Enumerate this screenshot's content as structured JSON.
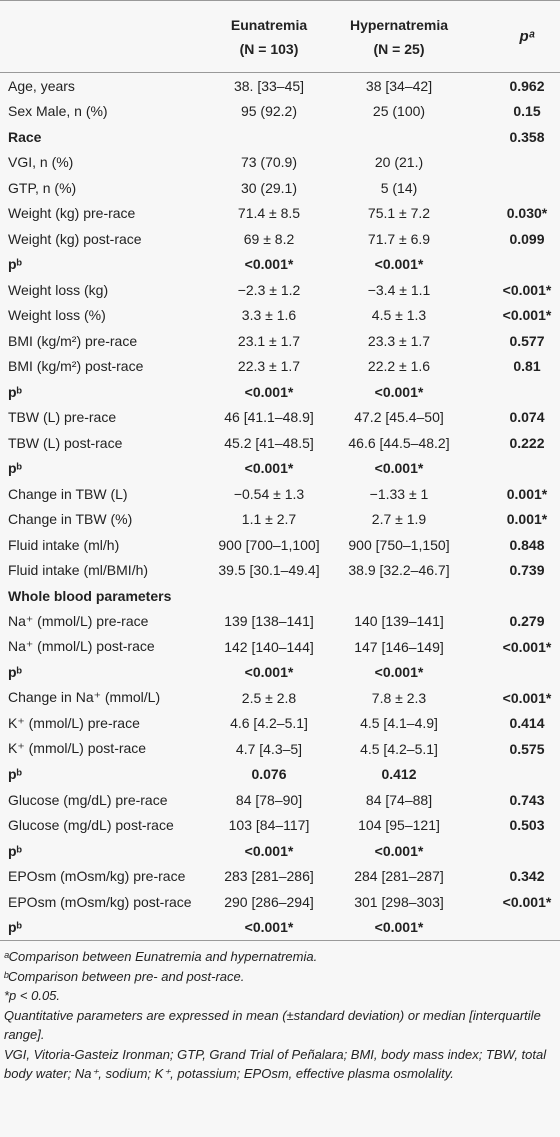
{
  "table": {
    "header": {
      "eunatremia": "Eunatremia",
      "eunatremia_n": "(N = 103)",
      "hypernatremia": "Hypernatremia",
      "hypernatremia_n": "(N = 25)",
      "p": "pᵃ"
    },
    "rows": [
      {
        "label": "Age, years",
        "eunatremia": "38. [33–45]",
        "hypernatremia": "38 [34–42]",
        "p": "0.962"
      },
      {
        "label": "Sex Male, n (%)",
        "eunatremia": "95 (92.2)",
        "hypernatremia": "25 (100)",
        "p": "0.15"
      },
      {
        "label": "Race",
        "p": "0.358",
        "bold": true
      },
      {
        "label": "VGI, n (%)",
        "eunatremia": "73 (70.9)",
        "hypernatremia": "20 (21.)"
      },
      {
        "label": "GTP, n (%)",
        "eunatremia": "30 (29.1)",
        "hypernatremia": "5 (14)"
      },
      {
        "label": "Weight (kg) pre-race",
        "eunatremia": "71.4 ± 8.5",
        "hypernatremia": "75.1 ± 7.2",
        "p": "0.030*"
      },
      {
        "label": "Weight (kg) post-race",
        "eunatremia": "69 ± 8.2",
        "hypernatremia": "71.7 ± 6.9",
        "p": "0.099"
      },
      {
        "label": "pᵇ",
        "eunatremia": "<0.001*",
        "hypernatremia": "<0.001*",
        "bold": true
      },
      {
        "label": "Weight loss (kg)",
        "eunatremia": "−2.3 ± 1.2",
        "hypernatremia": "−3.4 ± 1.1",
        "p": "<0.001*"
      },
      {
        "label": "Weight loss (%)",
        "eunatremia": "3.3 ± 1.6",
        "hypernatremia": "4.5 ± 1.3",
        "p": "<0.001*"
      },
      {
        "label": "BMI (kg/m²) pre-race",
        "eunatremia": "23.1 ± 1.7",
        "hypernatremia": "23.3 ± 1.7",
        "p": "0.577"
      },
      {
        "label": "BMI (kg/m²) post-race",
        "eunatremia": "22.3 ± 1.7",
        "hypernatremia": "22.2 ± 1.6",
        "p": "0.81"
      },
      {
        "label": "pᵇ",
        "eunatremia": "<0.001*",
        "hypernatremia": "<0.001*",
        "bold": true
      },
      {
        "label": "TBW (L) pre-race",
        "eunatremia": "46 [41.1–48.9]",
        "hypernatremia": "47.2 [45.4–50]",
        "p": "0.074"
      },
      {
        "label": "TBW (L) post-race",
        "eunatremia": "45.2 [41–48.5]",
        "hypernatremia": "46.6 [44.5–48.2]",
        "p": "0.222"
      },
      {
        "label": "pᵇ",
        "eunatremia": "<0.001*",
        "hypernatremia": "<0.001*",
        "bold": true
      },
      {
        "label": "Change in TBW (L)",
        "eunatremia": "−0.54 ± 1.3",
        "hypernatremia": "−1.33 ± 1",
        "p": "0.001*"
      },
      {
        "label": "Change in TBW (%)",
        "eunatremia": "1.1 ± 2.7",
        "hypernatremia": "2.7 ± 1.9",
        "p": "0.001*"
      },
      {
        "label": "Fluid intake (ml/h)",
        "eunatremia": "900 [700–1,100]",
        "hypernatremia": "900 [750–1,150]",
        "p": "0.848"
      },
      {
        "label": "Fluid intake (ml/BMI/h)",
        "eunatremia": "39.5 [30.1–49.4]",
        "hypernatremia": "38.9 [32.2–46.7]",
        "p": "0.739"
      },
      {
        "label": "Whole blood parameters",
        "bold": true
      },
      {
        "label": "Na⁺ (mmol/L) pre-race",
        "eunatremia": "139 [138–141]",
        "hypernatremia": "140 [139–141]",
        "p": "0.279"
      },
      {
        "label": "Na⁺ (mmol/L) post-race",
        "eunatremia": "142 [140–144]",
        "hypernatremia": "147 [146–149]",
        "p": "<0.001*"
      },
      {
        "label": "pᵇ",
        "eunatremia": "<0.001*",
        "hypernatremia": "<0.001*",
        "bold": true
      },
      {
        "label": "Change in Na⁺ (mmol/L)",
        "eunatremia": "2.5 ± 2.8",
        "hypernatremia": "7.8 ± 2.3",
        "p": "<0.001*"
      },
      {
        "label": "K⁺ (mmol/L) pre-race",
        "eunatremia": "4.6 [4.2–5.1]",
        "hypernatremia": "4.5 [4.1–4.9]",
        "p": "0.414"
      },
      {
        "label": "K⁺ (mmol/L) post-race",
        "eunatremia": "4.7 [4.3–5]",
        "hypernatremia": "4.5 [4.2–5.1]",
        "p": "0.575"
      },
      {
        "label": "pᵇ",
        "eunatremia": "0.076",
        "hypernatremia": "0.412",
        "bold": true
      },
      {
        "label": "Glucose (mg/dL) pre-race",
        "eunatremia": "84 [78–90]",
        "hypernatremia": "84 [74–88]",
        "p": "0.743"
      },
      {
        "label": "Glucose (mg/dL) post-race",
        "eunatremia": "103 [84–117]",
        "hypernatremia": "104 [95–121]",
        "p": "0.503"
      },
      {
        "label": "pᵇ",
        "eunatremia": "<0.001*",
        "hypernatremia": "<0.001*",
        "bold": true
      },
      {
        "label": "EPOsm (mOsm/kg) pre-race",
        "eunatremia": "283 [281–286]",
        "hypernatremia": "284 [281–287]",
        "p": "0.342"
      },
      {
        "label": "EPOsm (mOsm/kg) post-race",
        "eunatremia": "290 [286–294]",
        "hypernatremia": "301 [298–303]",
        "p": "<0.001*"
      },
      {
        "label": "pᵇ",
        "eunatremia": "<0.001*",
        "hypernatremia": "<0.001*",
        "bold": true
      }
    ],
    "footnotes": [
      "ᵃComparison between Eunatremia and hypernatremia.",
      "ᵇComparison between pre- and post-race.",
      "*p < 0.05.",
      "Quantitative parameters are expressed in mean (±standard deviation) or median [interquartile range].",
      "VGI, Vitoria-Gasteiz Ironman; GTP, Grand Trial of Peñalara; BMI, body mass index; TBW, total body water; Na⁺, sodium; K⁺, potassium; EPOsm, effective plasma osmolality."
    ]
  }
}
